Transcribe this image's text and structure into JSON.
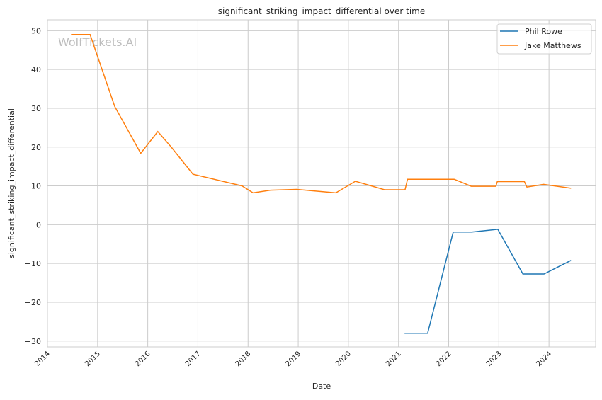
{
  "chart_data": {
    "type": "line",
    "title": "significant_striking_impact_differential over time",
    "xlabel": "Date",
    "ylabel": "significant_striking_impact_differential",
    "xlim": [
      2014.0,
      2024.93
    ],
    "ylim": [
      -31.5,
      52.8
    ],
    "xticks": [
      2014,
      2015,
      2016,
      2017,
      2018,
      2019,
      2020,
      2021,
      2022,
      2023,
      2024
    ],
    "yticks": [
      -30,
      -20,
      -10,
      0,
      10,
      20,
      30,
      40,
      50
    ],
    "ytick_labels": [
      "−30",
      "−20",
      "−10",
      "0",
      "10",
      "20",
      "30",
      "40",
      "50"
    ],
    "grid": true,
    "legend_placement": "top-right",
    "watermark": "WolfTickets.AI",
    "series": [
      {
        "name": "Phil Rowe",
        "color": "#1f77b4",
        "x": [
          2021.12,
          2021.58,
          2022.09,
          2022.46,
          2022.98,
          2023.48,
          2023.9,
          2024.44
        ],
        "y": [
          -28.0,
          -28.0,
          -1.9,
          -1.9,
          -1.2,
          -12.7,
          -12.7,
          -9.2
        ]
      },
      {
        "name": "Jake Matthews",
        "color": "#ff7f0e",
        "x": [
          2014.47,
          2014.85,
          2015.34,
          2015.86,
          2016.2,
          2016.47,
          2016.9,
          2017.88,
          2018.1,
          2018.45,
          2018.97,
          2019.75,
          2020.14,
          2020.72,
          2021.13,
          2021.18,
          2022.11,
          2022.45,
          2022.94,
          2022.97,
          2023.51,
          2023.56,
          2023.89,
          2024.44
        ],
        "y": [
          49.0,
          49.0,
          30.5,
          18.4,
          24.0,
          20.0,
          13.0,
          10.0,
          8.2,
          8.9,
          9.1,
          8.2,
          11.2,
          9.0,
          9.0,
          11.7,
          11.7,
          9.9,
          9.9,
          11.1,
          11.1,
          9.7,
          10.4,
          9.4
        ]
      }
    ]
  }
}
